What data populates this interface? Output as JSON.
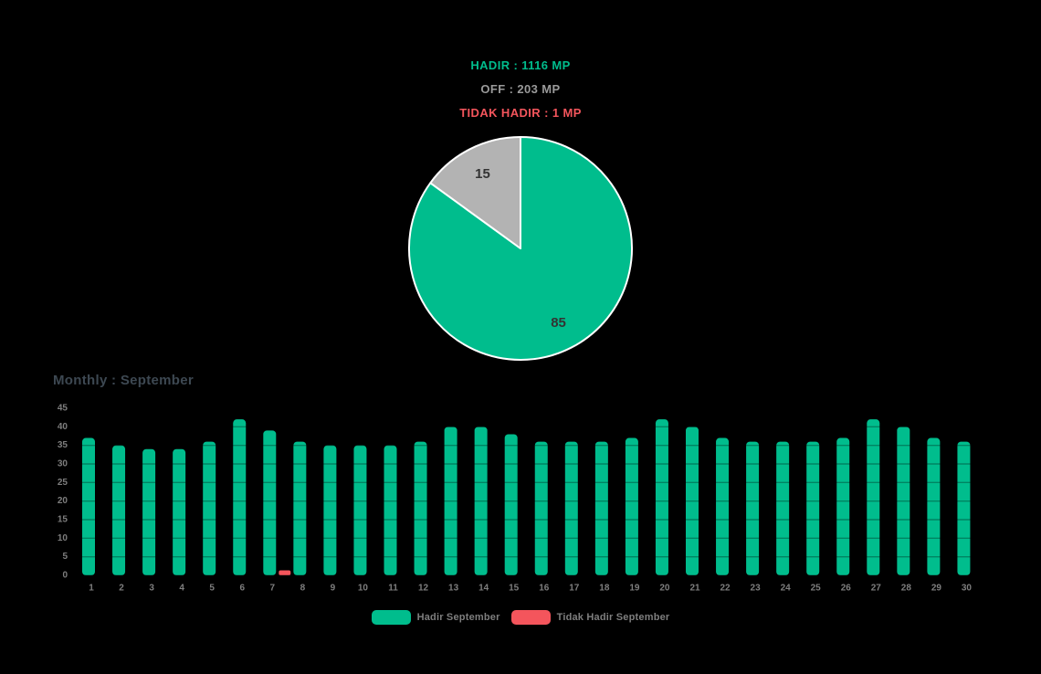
{
  "summary": {
    "hadir": "HADIR : 1116 MP",
    "off": "OFF : 203 MP",
    "tidak_hadir": "TIDAK HADIR : 1 MP"
  },
  "colors": {
    "green": "#00BD8D",
    "red": "#F4555C",
    "gray": "#B3B3B3",
    "off_text": "#9A9A9A",
    "axis_text": "#7E7E7E",
    "bar_title_text": "#3D4852",
    "pie_value_text": "#333333",
    "pie_border": "#FFFFFF",
    "background": "#000000"
  },
  "chart_data": [
    {
      "type": "pie",
      "title_lines": [
        "HADIR : 1116 MP",
        "OFF : 203 MP",
        "TIDAK HADIR : 1 MP"
      ],
      "slices": [
        {
          "label": "hadir",
          "value": 85,
          "display": "85",
          "color": "#00BD8D"
        },
        {
          "label": "off",
          "value": 15,
          "display": "15",
          "color": "#B3B3B3"
        }
      ],
      "start_angle_deg": 0,
      "direction": "clockwise",
      "border_color": "#FFFFFF",
      "legend_position": "none"
    },
    {
      "type": "bar",
      "title": "Monthly : September",
      "categories": [
        "1",
        "2",
        "3",
        "4",
        "5",
        "6",
        "7",
        "8",
        "9",
        "10",
        "11",
        "12",
        "13",
        "14",
        "15",
        "16",
        "17",
        "18",
        "19",
        "20",
        "21",
        "22",
        "23",
        "24",
        "25",
        "26",
        "27",
        "28",
        "29",
        "30"
      ],
      "series": [
        {
          "name": "Hadir September",
          "color": "#00BD8D",
          "values": [
            37,
            35,
            34,
            34,
            36,
            42,
            39,
            36,
            35,
            35,
            35,
            36,
            40,
            40,
            38,
            36,
            36,
            36,
            37,
            42,
            40,
            37,
            36,
            36,
            36,
            37,
            42,
            40,
            37,
            36
          ]
        },
        {
          "name": "Tidak Hadir September",
          "color": "#F4555C",
          "values": [
            0,
            0,
            0,
            0,
            0,
            0,
            1,
            0,
            0,
            0,
            0,
            0,
            0,
            0,
            0,
            0,
            0,
            0,
            0,
            0,
            0,
            0,
            0,
            0,
            0,
            0,
            0,
            0,
            0,
            0
          ]
        }
      ],
      "xlabel": "",
      "ylabel": "",
      "ylim": [
        0,
        45
      ],
      "yticks": [
        0,
        5,
        10,
        15,
        20,
        25,
        30,
        35,
        40,
        45
      ],
      "grid": false,
      "legend_position": "bottom"
    }
  ],
  "legend": [
    {
      "label": "Hadir September"
    },
    {
      "label": "Tidak Hadir September"
    }
  ]
}
